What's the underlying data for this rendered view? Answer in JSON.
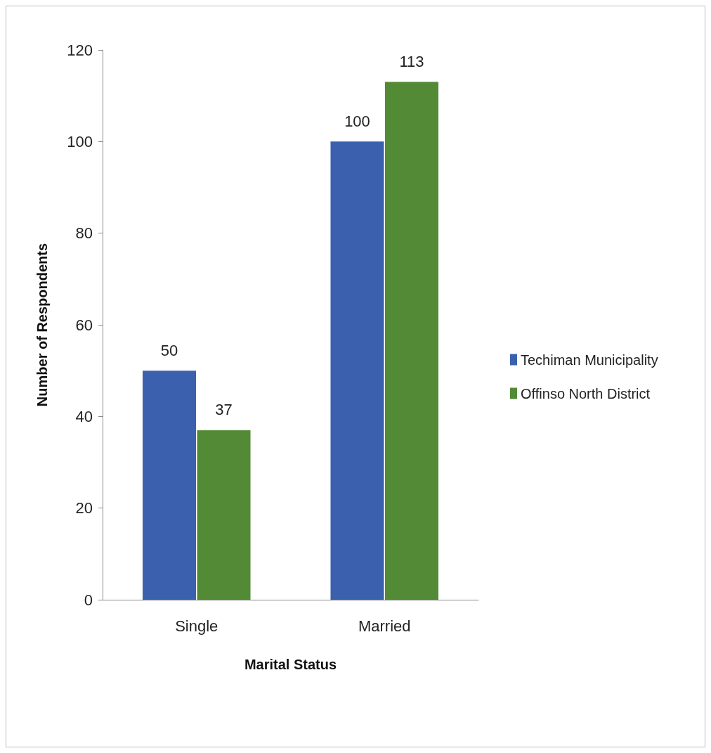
{
  "chart_data": {
    "type": "bar",
    "xlabel": "Marital Status",
    "ylabel": "Number of Respondents",
    "categories": [
      "Single",
      "Married"
    ],
    "series": [
      {
        "name": "Techiman Municipality",
        "color": "#3b61ae",
        "values": [
          50,
          100
        ]
      },
      {
        "name": "Offinso North District",
        "color": "#528a35",
        "values": [
          37,
          113
        ]
      }
    ],
    "ylim": [
      0,
      120
    ],
    "yticks": [
      0,
      20,
      40,
      60,
      80,
      100,
      120
    ],
    "grid": false,
    "legend": "right",
    "data_labels": true
  }
}
